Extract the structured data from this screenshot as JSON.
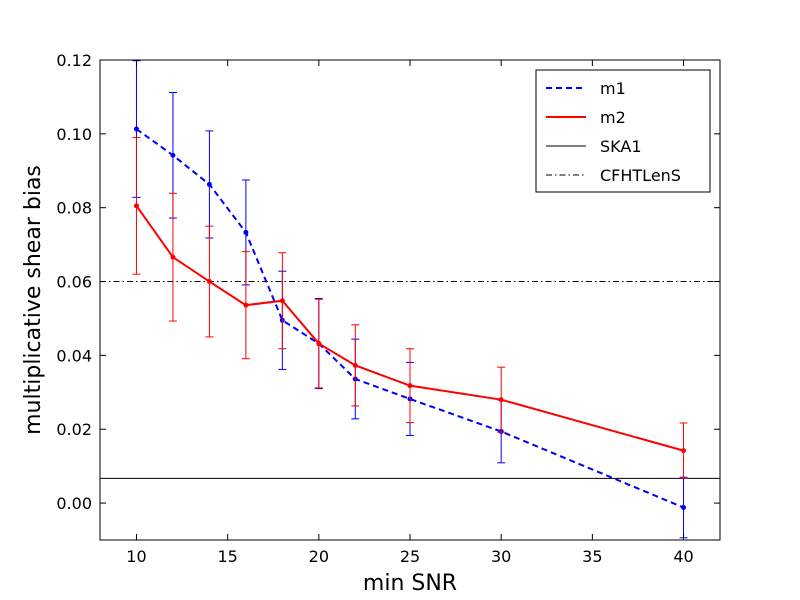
{
  "chart_data": {
    "type": "line",
    "title": "",
    "xlabel": "min SNR",
    "ylabel": "multiplicative shear bias",
    "xlim": [
      8,
      42
    ],
    "ylim": [
      -0.01,
      0.12
    ],
    "xticks": [
      10,
      15,
      20,
      25,
      30,
      35,
      40
    ],
    "yticks": [
      0.0,
      0.02,
      0.04,
      0.06,
      0.08,
      0.1,
      0.12
    ],
    "ytick_labels": [
      "0.00",
      "0.02",
      "0.04",
      "0.06",
      "0.08",
      "0.10",
      "0.12"
    ],
    "x": [
      10,
      12,
      14,
      16,
      18,
      20,
      22,
      25,
      30,
      40
    ],
    "series": [
      {
        "name": "m1",
        "color": "#0000ff",
        "style": "dashed",
        "values": [
          0.1013,
          0.0942,
          0.0863,
          0.0733,
          0.0495,
          0.0432,
          0.0336,
          0.0282,
          0.0194,
          -0.0012
        ],
        "errors": [
          0.0185,
          0.017,
          0.0145,
          0.0142,
          0.0133,
          0.0122,
          0.0108,
          0.0099,
          0.0085,
          0.0082
        ]
      },
      {
        "name": "m2",
        "color": "#ff0000",
        "style": "solid",
        "values": [
          0.0805,
          0.0666,
          0.06,
          0.0536,
          0.0548,
          0.0432,
          0.0373,
          0.0318,
          0.028,
          0.0142
        ],
        "errors": [
          0.0185,
          0.0173,
          0.015,
          0.0145,
          0.013,
          0.012,
          0.011,
          0.01,
          0.0088,
          0.0075
        ]
      }
    ],
    "reference_lines": [
      {
        "name": "SKA1",
        "y": 0.0067,
        "color": "#000000",
        "style": "solid"
      },
      {
        "name": "CFHTLenS",
        "y": 0.06,
        "color": "#000000",
        "style": "dashdot"
      }
    ],
    "legend": {
      "location": "top-right",
      "entries": [
        {
          "label": "m1",
          "color": "#0000ff",
          "style": "dashed"
        },
        {
          "label": "m2",
          "color": "#ff0000",
          "style": "solid"
        },
        {
          "label": "SKA1",
          "color": "#000000",
          "style": "solid"
        },
        {
          "label": "CFHTLenS",
          "color": "#000000",
          "style": "dashdot"
        }
      ]
    }
  }
}
